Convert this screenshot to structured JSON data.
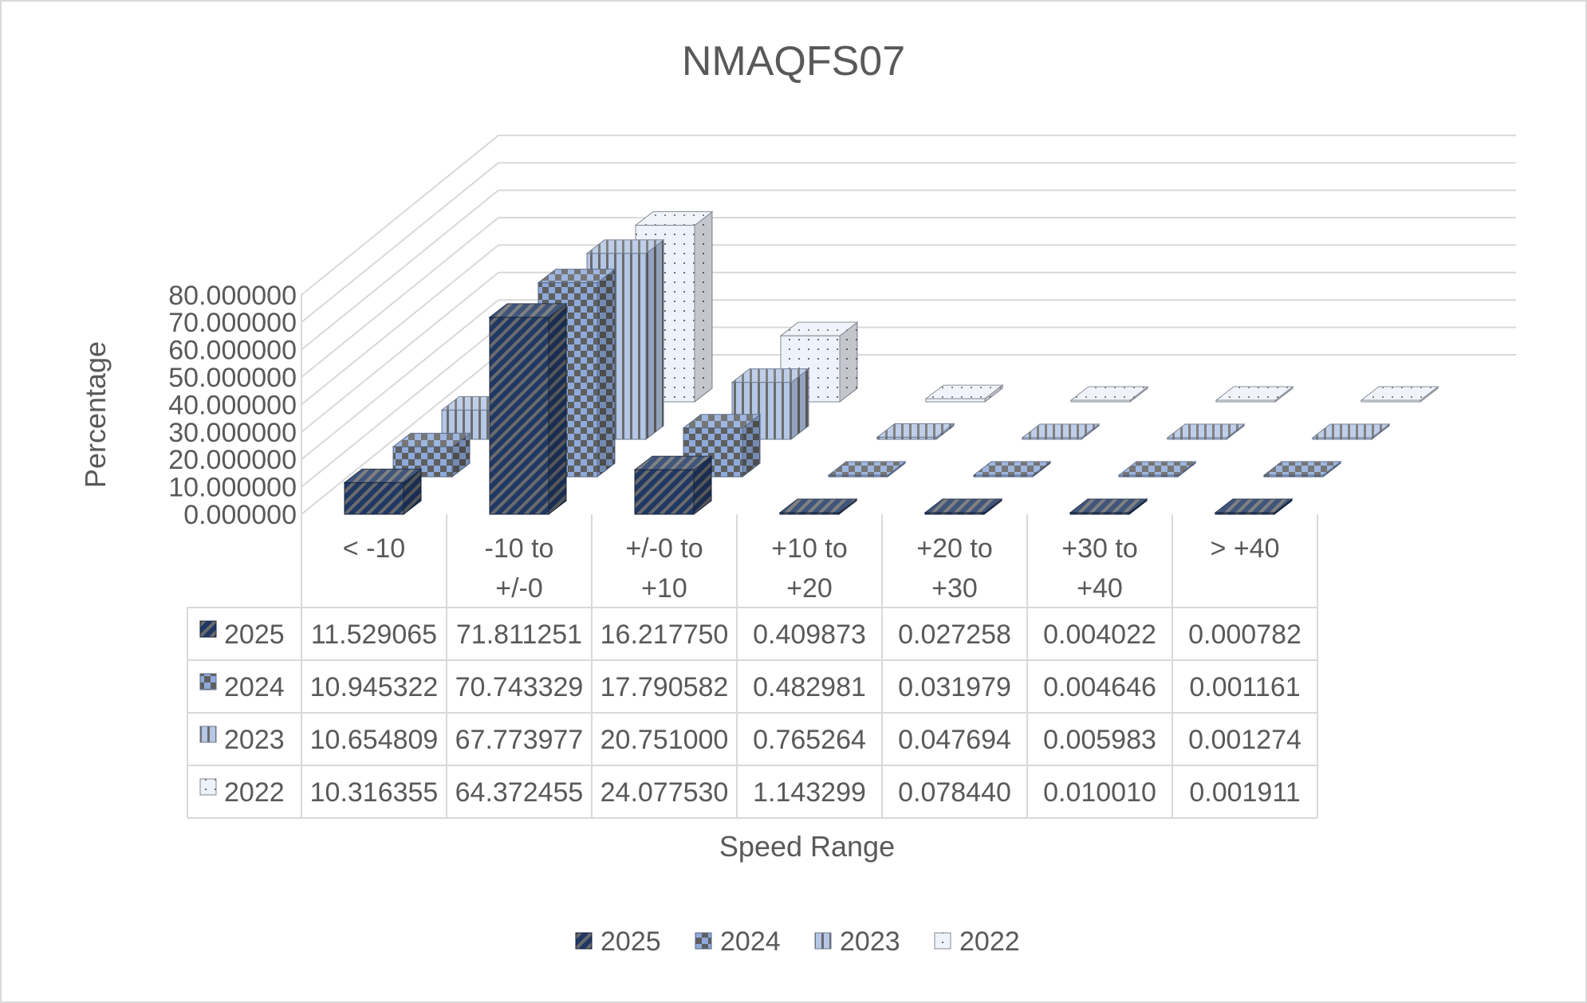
{
  "chart_data": {
    "type": "bar",
    "title": "NMAQFS07",
    "xlabel": "Speed Range",
    "ylabel": "Percentage",
    "ylim": [
      0,
      80
    ],
    "yticks": [
      "0.000000",
      "10.000000",
      "20.000000",
      "30.000000",
      "40.000000",
      "50.000000",
      "60.000000",
      "70.000000",
      "80.000000"
    ],
    "categories": [
      "< -10",
      "-10 to +/-0",
      "+/-0 to +10",
      "+10 to +20",
      "+20 to +30",
      "+30 to +40",
      "> +40"
    ],
    "category_lines": [
      [
        "< -10"
      ],
      [
        "-10 to",
        "+/-0"
      ],
      [
        "+/-0 to",
        "+10"
      ],
      [
        "+10 to",
        "+20"
      ],
      [
        "+20 to",
        "+30"
      ],
      [
        "+30 to",
        "+40"
      ],
      [
        "> +40"
      ]
    ],
    "legend_placement": "bottom",
    "grid": true,
    "data_table": true,
    "series": [
      {
        "name": "2025",
        "color": "#1f3864",
        "values": [
          11.529065,
          71.811251,
          16.21775,
          0.409873,
          0.027258,
          0.004022,
          0.000782
        ],
        "cells": [
          "11.529065",
          "71.811251",
          "16.217750",
          "0.409873",
          "0.027258",
          "0.004022",
          "0.000782"
        ]
      },
      {
        "name": "2024",
        "color": "#8eaadb",
        "values": [
          10.945322,
          70.743329,
          17.790582,
          0.482981,
          0.031979,
          0.004646,
          0.001161
        ],
        "cells": [
          "10.945322",
          "70.743329",
          "17.790582",
          "0.482981",
          "0.031979",
          "0.004646",
          "0.001161"
        ]
      },
      {
        "name": "2023",
        "color": "#b4c7e7",
        "values": [
          10.654809,
          67.773977,
          20.751,
          0.765264,
          0.047694,
          0.005983,
          0.001274
        ],
        "cells": [
          "10.654809",
          "67.773977",
          "20.751000",
          "0.765264",
          "0.047694",
          "0.005983",
          "0.001274"
        ]
      },
      {
        "name": "2022",
        "color": "#dae3f3",
        "values": [
          10.316355,
          64.372455,
          24.07753,
          1.143299,
          0.07844,
          0.01001,
          0.001911
        ],
        "cells": [
          "10.316355",
          "64.372455",
          "24.077530",
          "1.143299",
          "0.078440",
          "0.010010",
          "0.001911"
        ]
      }
    ]
  }
}
